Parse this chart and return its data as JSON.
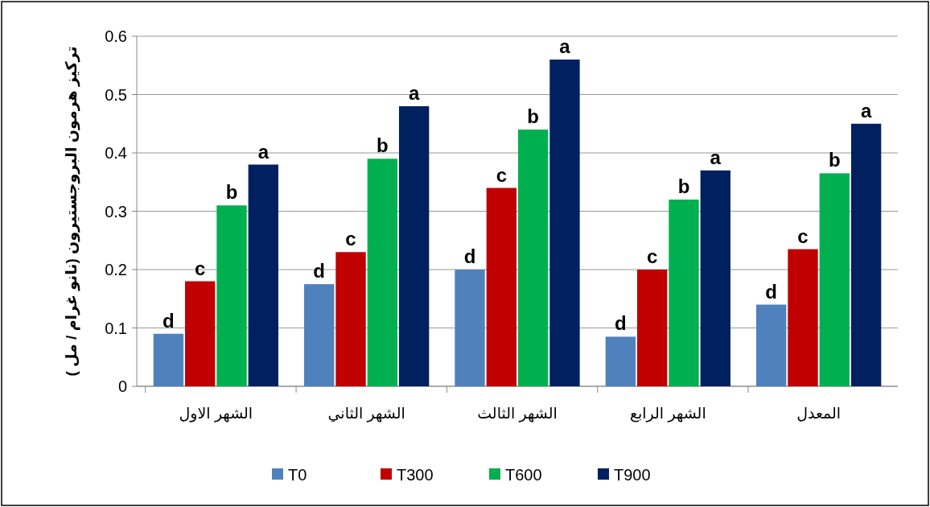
{
  "chart_data": {
    "type": "bar",
    "ylabel": "تركيز هرمون البروجستيرون (نانو غرام / مل )",
    "categories": [
      "الشهر الاول",
      "الشهر الثاني",
      "الشهر الثالث",
      "الشهر الرابع",
      "المعدل"
    ],
    "series": [
      {
        "name": "T0",
        "color": "#4f81bd",
        "values": [
          0.09,
          0.175,
          0.2,
          0.085,
          0.14
        ],
        "value_labels": [
          "d",
          "d",
          "d",
          "d",
          "d"
        ]
      },
      {
        "name": "T300",
        "color": "#c00000",
        "values": [
          0.18,
          0.23,
          0.34,
          0.2,
          0.235
        ],
        "value_labels": [
          "c",
          "c",
          "c",
          "c",
          "c"
        ]
      },
      {
        "name": "T600",
        "color": "#00b050",
        "values": [
          0.31,
          0.39,
          0.44,
          0.32,
          0.365
        ],
        "value_labels": [
          "b",
          "b",
          "b",
          "b",
          "b"
        ]
      },
      {
        "name": "T900",
        "color": "#002060",
        "values": [
          0.38,
          0.48,
          0.56,
          0.37,
          0.45
        ],
        "value_labels": [
          "a",
          "a",
          "a",
          "a",
          "a"
        ]
      }
    ],
    "ylim": [
      0,
      0.6
    ],
    "yticks": [
      0,
      0.1,
      0.2,
      0.3,
      0.4,
      0.5,
      0.6
    ],
    "grid": "y",
    "legend": "bottom"
  }
}
